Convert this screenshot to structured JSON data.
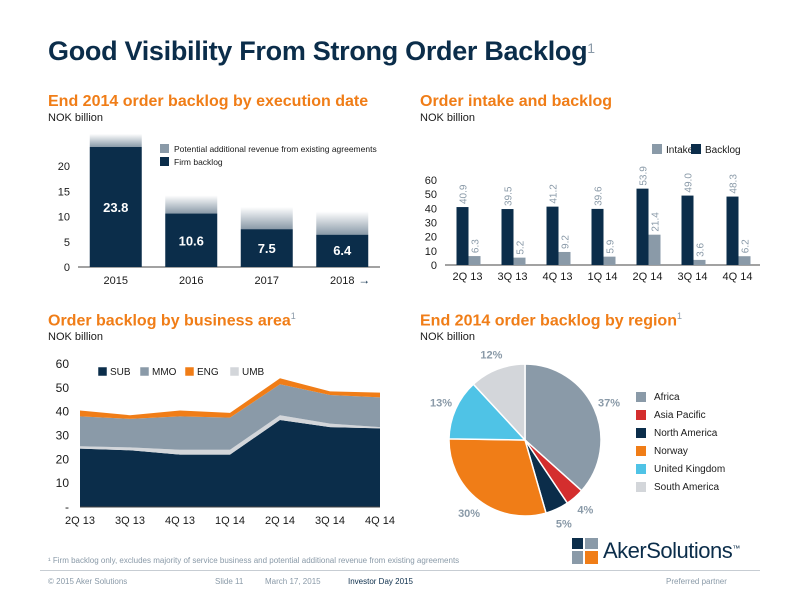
{
  "title": "Good Visibility From Strong Order Backlog",
  "title_footnote": "1",
  "colors": {
    "navy": "#0b2d4a",
    "orange": "#f07d17",
    "grey": "#8a9aa8",
    "light_grey": "#d3d6da",
    "red": "#d42e2e",
    "cyan": "#4fc3e6"
  },
  "panels": {
    "backlog_exec": {
      "title": "End 2014 order backlog by execution date",
      "subtitle": "NOK billion"
    },
    "intake": {
      "title": "Order intake and backlog",
      "subtitle": "NOK billion"
    },
    "business_area": {
      "title": "Order backlog by business area",
      "footnote": "1",
      "subtitle": "NOK billion"
    },
    "region": {
      "title": "End 2014 order backlog by region",
      "footnote": "1",
      "subtitle": "NOK billion"
    }
  },
  "chart_data": [
    {
      "id": "backlog_exec",
      "type": "bar",
      "categories": [
        "2015",
        "2016",
        "2017",
        "2018"
      ],
      "last_category_arrow": "→",
      "series": [
        {
          "name": "Firm backlog",
          "values": [
            23.8,
            10.6,
            7.5,
            6.4
          ],
          "color": "#0b2d4a",
          "labels": [
            "23.8",
            "10.6",
            "7.5",
            "6.4"
          ]
        },
        {
          "name": "Potential additional revenue from existing agreements",
          "values": [
            2.6,
            3.6,
            4.4,
            4.6
          ],
          "color": "#8a9aa8"
        }
      ],
      "yticks": [
        "0",
        "5",
        "10",
        "15",
        "20"
      ],
      "ylim": [
        0,
        24
      ],
      "grid": false,
      "legend": "top-right"
    },
    {
      "id": "intake",
      "type": "bar",
      "categories": [
        "2Q 13",
        "3Q 13",
        "4Q 13",
        "1Q 14",
        "2Q 14",
        "3Q 14",
        "4Q 14"
      ],
      "series": [
        {
          "name": "Backlog",
          "values": [
            40.9,
            39.5,
            41.2,
            39.6,
            53.9,
            49.0,
            48.3
          ],
          "labels": [
            "40.9",
            "39.5",
            "41.2",
            "39.6",
            "53.9",
            "49.0",
            "48.3"
          ],
          "color": "#0b2d4a"
        },
        {
          "name": "Intake",
          "values": [
            6.3,
            5.2,
            9.2,
            5.9,
            21.4,
            3.6,
            6.2
          ],
          "labels": [
            "6.3",
            "5.2",
            "9.2",
            "5.9",
            "21.4",
            "3.6",
            "6.2"
          ],
          "color": "#8a9aa8"
        }
      ],
      "legend_labels": [
        "Intake",
        "Backlog"
      ],
      "yticks": [
        "0",
        "10",
        "20",
        "30",
        "40",
        "50",
        "60"
      ],
      "ylim": [
        0,
        60
      ],
      "grid": false,
      "legend": "top-right"
    },
    {
      "id": "business_area",
      "type": "area",
      "categories": [
        "2Q 13",
        "3Q 13",
        "4Q 13",
        "1Q 14",
        "2Q 14",
        "3Q 14",
        "4Q 14"
      ],
      "series": [
        {
          "name": "SUB",
          "values": [
            24.5,
            23.8,
            22,
            22,
            36.5,
            33.5,
            33
          ],
          "color": "#0b2d4a"
        },
        {
          "name": "UMB",
          "values": [
            1,
            1.2,
            2,
            2,
            2,
            1.5,
            0.5
          ],
          "color": "#d3d6da"
        },
        {
          "name": "MMO",
          "values": [
            12.5,
            12,
            14,
            13.5,
            13,
            12,
            12.5
          ],
          "color": "#8a9aa8"
        },
        {
          "name": "ENG",
          "values": [
            2.5,
            1.5,
            2.5,
            2,
            2.5,
            1.5,
            2
          ],
          "color": "#f07d17"
        }
      ],
      "legend_order": [
        "SUB",
        "MMO",
        "ENG",
        "UMB"
      ],
      "yticks": [
        "-",
        "10",
        "20",
        "30",
        "40",
        "50",
        "60"
      ],
      "ylim": [
        0,
        60
      ],
      "grid": false,
      "legend": "top-left"
    },
    {
      "id": "region",
      "type": "pie",
      "slices": [
        {
          "name": "Africa",
          "value": 37,
          "label": "37%",
          "color": "#8a9aa8"
        },
        {
          "name": "Asia Pacific",
          "value": 4,
          "label": "4%",
          "color": "#d42e2e"
        },
        {
          "name": "North America",
          "value": 5,
          "label": "5%",
          "color": "#0b2d4a"
        },
        {
          "name": "Norway",
          "value": 30,
          "label": "30%",
          "color": "#f07d17"
        },
        {
          "name": "United Kingdom",
          "value": 13,
          "label": "13%",
          "color": "#4fc3e6"
        },
        {
          "name": "South America",
          "value": 12,
          "label": "12%",
          "color": "#d3d6da"
        }
      ],
      "legend": "right"
    }
  ],
  "footnote": "¹ Firm backlog only, excludes majority of service business and potential additional revenue from existing agreements",
  "logo": {
    "text": "AkerSolutions",
    "tm": "™"
  },
  "footer": {
    "copyright": "© 2015 Aker Solutions",
    "slide": "Slide 11",
    "date": "March 17, 2015",
    "event": "Investor Day 2015",
    "tagline": "Preferred partner"
  }
}
